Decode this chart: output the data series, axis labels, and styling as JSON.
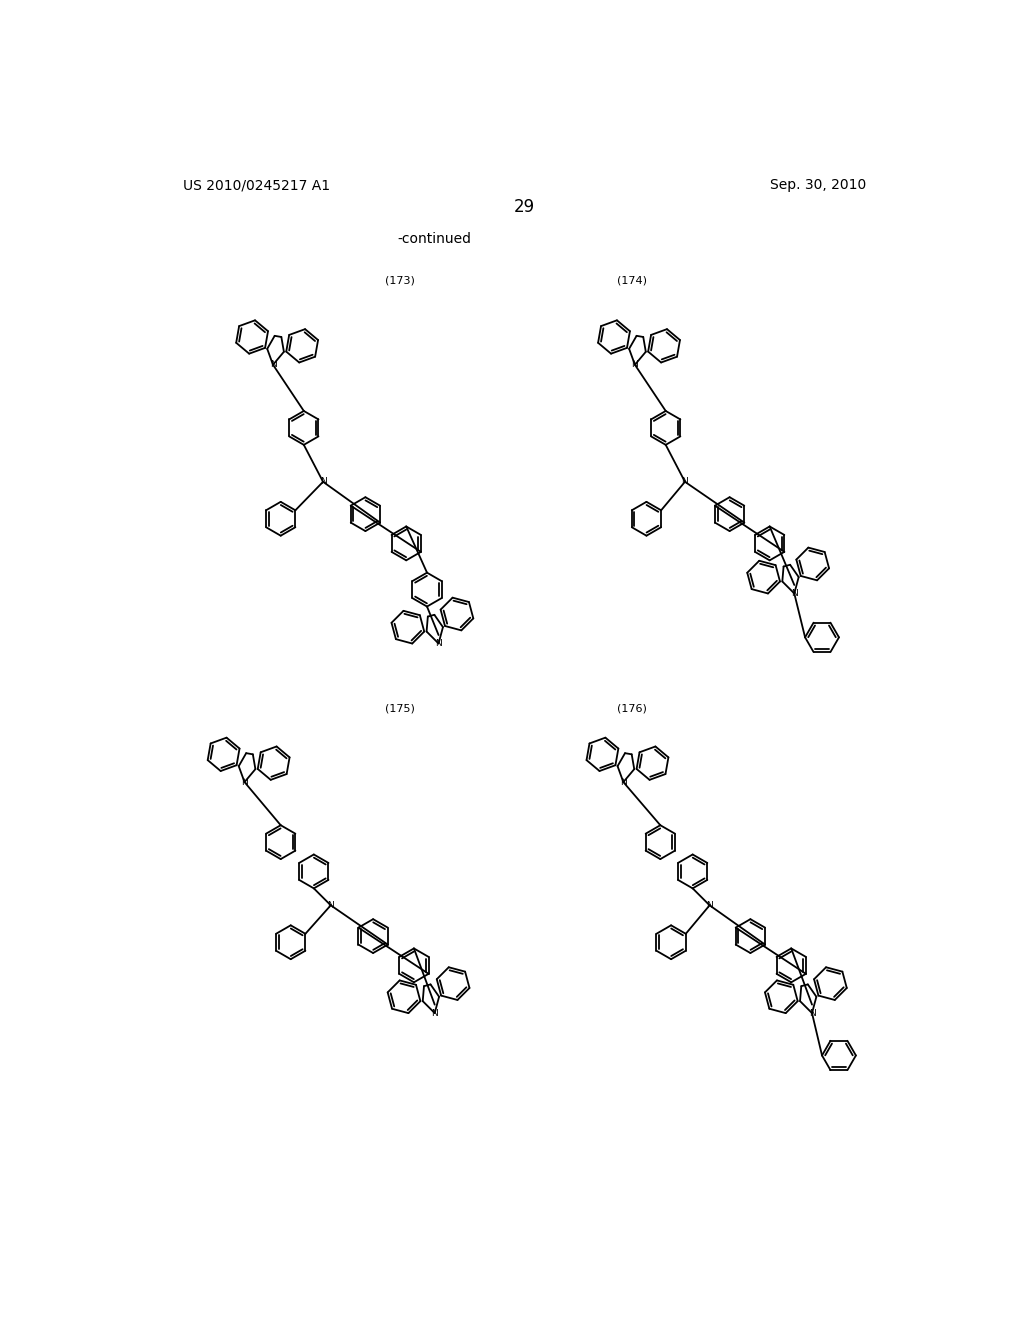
{
  "page_title_left": "US 2010/0245217 A1",
  "page_title_right": "Sep. 30, 2010",
  "page_number": "29",
  "continued_text": "-continued",
  "compound_labels": [
    "(173)",
    "(174)",
    "(175)",
    "(176)"
  ],
  "background_color": "#ffffff",
  "text_color": "#000000",
  "line_color": "#000000",
  "line_width": 1.3
}
